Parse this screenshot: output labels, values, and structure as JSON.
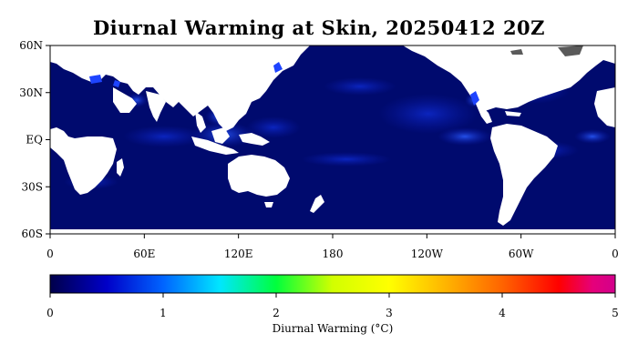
{
  "title": "Diurnal Warming at Skin, 20250412 20Z",
  "map": {
    "lat_ticks": [
      "60N",
      "30N",
      "EQ",
      "30S",
      "60S"
    ],
    "lon_ticks": [
      "0",
      "60E",
      "120E",
      "180",
      "120W",
      "60W",
      "0"
    ],
    "lat_range": [
      -60,
      60
    ],
    "lon_range": [
      0,
      360
    ],
    "ocean_base_color": "#000a6e",
    "land_color": "#ffffff",
    "ice_color": "#555555"
  },
  "colorbar": {
    "ticks": [
      "0",
      "1",
      "2",
      "3",
      "4",
      "5"
    ],
    "range": [
      0,
      5
    ],
    "label": "Diurnal Warming (°C)",
    "colors": [
      "#00004a",
      "#0000c8",
      "#0064ff",
      "#00e6ff",
      "#00ff3c",
      "#d2ff00",
      "#ffff00",
      "#ffb400",
      "#ff6400",
      "#ff0000",
      "#e6007a",
      "#d2008c"
    ]
  }
}
